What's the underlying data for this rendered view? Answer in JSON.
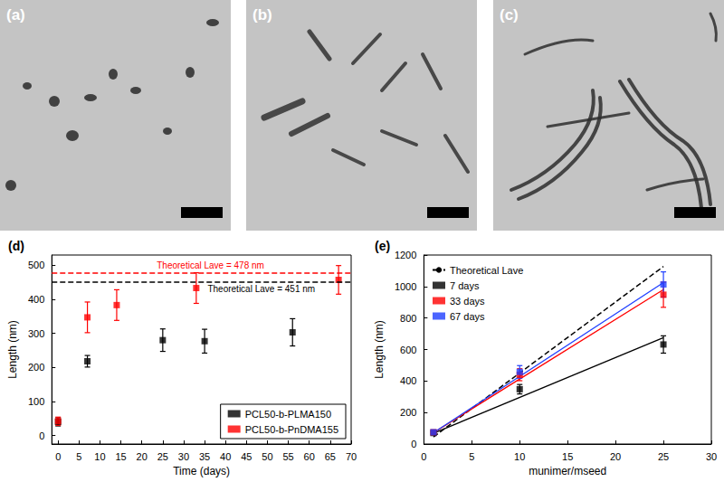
{
  "micrographs": [
    {
      "label": "(a)"
    },
    {
      "label": "(b)"
    },
    {
      "label": "(c)"
    }
  ],
  "chart_data": [
    {
      "type": "scatter",
      "panel": "(d)",
      "x_label": "Time (days)",
      "y_label": "Length (nm)",
      "xlim": [
        -1.5,
        70
      ],
      "xticks": [
        0,
        5,
        10,
        15,
        20,
        25,
        30,
        35,
        40,
        45,
        50,
        55,
        60,
        65,
        70
      ],
      "ylim": [
        -25,
        530
      ],
      "yticks": [
        0,
        100,
        200,
        300,
        400,
        500
      ],
      "grid": false,
      "legend": "lower right",
      "series": [
        {
          "name": "PCL50-b-PLMA150",
          "color": "#000000",
          "marker": "square",
          "x": [
            0,
            7,
            25,
            35,
            56
          ],
          "values": [
            40,
            218,
            280,
            277,
            303
          ],
          "errors": [
            12,
            17,
            33,
            35,
            40
          ]
        },
        {
          "name": "PCL50-b-PnDMA155",
          "color": "#ff0000",
          "marker": "square",
          "x": [
            0,
            7,
            14,
            33,
            67
          ],
          "values": [
            42,
            347,
            383,
            433,
            457
          ],
          "errors": [
            12,
            45,
            45,
            45,
            42
          ]
        }
      ],
      "reference_lines": [
        {
          "value": 478,
          "color": "#ff0000",
          "line_style": "dashed",
          "label": "Theoretical Lave = 478 nm"
        },
        {
          "value": 451,
          "color": "#000000",
          "line_style": "dashed",
          "label": "Theoretical Lave = 451 nm"
        }
      ]
    },
    {
      "type": "scatter",
      "panel": "(e)",
      "x_label": "munimer/mseed",
      "y_label": "Length (nm)",
      "xlim": [
        0,
        30
      ],
      "xticks": [
        0,
        5,
        10,
        15,
        20,
        25,
        30
      ],
      "ylim": [
        0,
        1200
      ],
      "yticks": [
        0,
        200,
        400,
        600,
        800,
        1000,
        1200
      ],
      "grid": false,
      "legend": "upper left",
      "series": [
        {
          "name": "Theoretical Lave",
          "type": "line",
          "line_style": "dashed",
          "color": "#000000",
          "x": [
            1,
            10,
            25
          ],
          "values": [
            45,
            451,
            1127
          ]
        },
        {
          "name": "7 days",
          "color": "#000000",
          "marker": "square",
          "x": [
            1,
            10,
            25
          ],
          "values": [
            70,
            348,
            632
          ],
          "errors": [
            8,
            30,
            55
          ],
          "fit": {
            "x": [
              1,
              25
            ],
            "values": [
              68,
              675
            ]
          }
        },
        {
          "name": "33 days",
          "color": "#ff0000",
          "marker": "square",
          "x": [
            1,
            10,
            25
          ],
          "values": [
            75,
            440,
            948
          ],
          "errors": [
            8,
            38,
            80
          ],
          "fit": {
            "x": [
              1,
              25
            ],
            "values": [
              72,
              980
            ]
          }
        },
        {
          "name": "67 days",
          "color": "#1f3fff",
          "marker": "square",
          "x": [
            1,
            10,
            25
          ],
          "values": [
            75,
            458,
            1013
          ],
          "errors": [
            8,
            40,
            80
          ],
          "fit": {
            "x": [
              1,
              25
            ],
            "values": [
              72,
              1025
            ]
          }
        }
      ]
    }
  ]
}
